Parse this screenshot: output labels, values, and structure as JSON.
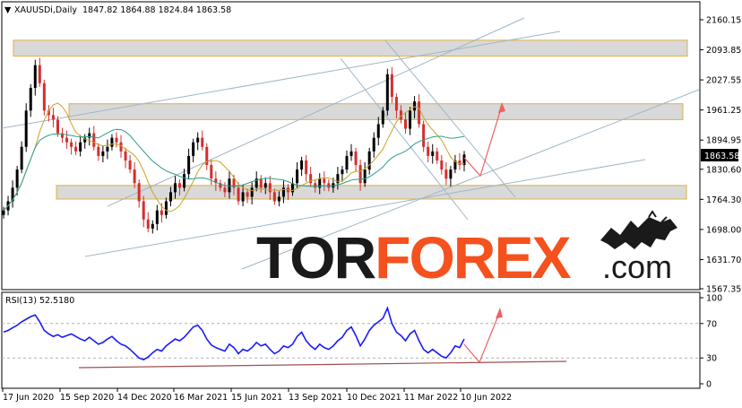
{
  "header": {
    "symbol_label": "XAUUSDi,Daily",
    "ohlc_label": "1847.82 1864.88 1824.84 1863.58",
    "rsi_label": "RSI(13) 52.5180"
  },
  "watermark": {
    "part1": "TOR",
    "part2": "FOREX",
    "part3": ".com",
    "color_dark": "#1a1a1a",
    "color_accent": "#f4511e"
  },
  "colors": {
    "bull_candle": "#000000",
    "bear_candle": "#d32f2f",
    "ma_fast": "#c9a227",
    "ma_slow": "#2e9d8f",
    "zone_fill": "#d9d9d9",
    "zone_border": "#e0b040",
    "trend_line": "#9fb6c8",
    "projection_arrow": "#f06060",
    "rsi_line": "#1a1aff",
    "rsi_support": "#a05050",
    "price_badge": "#000000"
  },
  "chart_data": [
    {
      "type": "candlestick",
      "title": "XAUUSDi,Daily",
      "current_price": "1863.58",
      "y_ticks": [
        "2160.15",
        "2093.85",
        "2027.55",
        "1961.25",
        "1894.95",
        "1830.60",
        "1764.30",
        "1698.00",
        "1631.70",
        "1567.35"
      ],
      "ylim": [
        1567.35,
        2160.15
      ],
      "x_ticks": [
        "17 Jun 2020",
        "15 Sep 2020",
        "14 Dec 2020",
        "16 Mar 2021",
        "15 Jun 2021",
        "13 Sep 2021",
        "10 Dec 2021",
        "11 Mar 2022",
        "10 Jun 2022"
      ],
      "close_series": [
        1740,
        1760,
        1790,
        1830,
        1880,
        1960,
        2010,
        2060,
        2020,
        1960,
        1950,
        1940,
        1910,
        1900,
        1890,
        1880,
        1870,
        1890,
        1900,
        1910,
        1880,
        1860,
        1870,
        1880,
        1900,
        1890,
        1870,
        1850,
        1830,
        1800,
        1760,
        1720,
        1700,
        1710,
        1740,
        1730,
        1760,
        1780,
        1800,
        1790,
        1820,
        1860,
        1890,
        1900,
        1880,
        1840,
        1810,
        1800,
        1790,
        1780,
        1810,
        1790,
        1760,
        1780,
        1770,
        1790,
        1810,
        1790,
        1800,
        1780,
        1760,
        1770,
        1790,
        1780,
        1800,
        1830,
        1850,
        1820,
        1800,
        1790,
        1810,
        1800,
        1790,
        1800,
        1820,
        1830,
        1860,
        1870,
        1840,
        1800,
        1830,
        1870,
        1900,
        1930,
        1960,
        2040,
        1990,
        1960,
        1940,
        1920,
        1960,
        1980,
        1930,
        1880,
        1860,
        1870,
        1850,
        1830,
        1810,
        1830,
        1850,
        1840,
        1863
      ],
      "support_resistance_zones": [
        {
          "from": 2080,
          "to": 2115
        },
        {
          "from": 1940,
          "to": 1975
        },
        {
          "from": 1765,
          "to": 1795
        }
      ]
    },
    {
      "type": "line",
      "title": "RSI(13) 52.5180",
      "current_value": 52.518,
      "y_ticks": [
        100,
        70,
        30,
        0
      ],
      "ylim": [
        0,
        100
      ],
      "levels": [
        70,
        30
      ],
      "values": [
        60,
        62,
        65,
        68,
        72,
        75,
        78,
        80,
        72,
        62,
        58,
        55,
        57,
        54,
        56,
        58,
        55,
        52,
        50,
        54,
        50,
        46,
        48,
        52,
        55,
        50,
        46,
        44,
        40,
        35,
        30,
        28,
        31,
        36,
        40,
        38,
        44,
        48,
        52,
        50,
        54,
        60,
        66,
        68,
        62,
        52,
        45,
        42,
        40,
        38,
        46,
        42,
        35,
        40,
        38,
        42,
        48,
        44,
        46,
        40,
        35,
        38,
        44,
        42,
        46,
        55,
        60,
        50,
        44,
        40,
        46,
        42,
        40,
        44,
        50,
        54,
        62,
        66,
        56,
        44,
        52,
        62,
        68,
        72,
        76,
        88,
        70,
        60,
        56,
        50,
        58,
        62,
        50,
        40,
        36,
        40,
        36,
        32,
        30,
        36,
        44,
        42,
        52
      ]
    }
  ]
}
